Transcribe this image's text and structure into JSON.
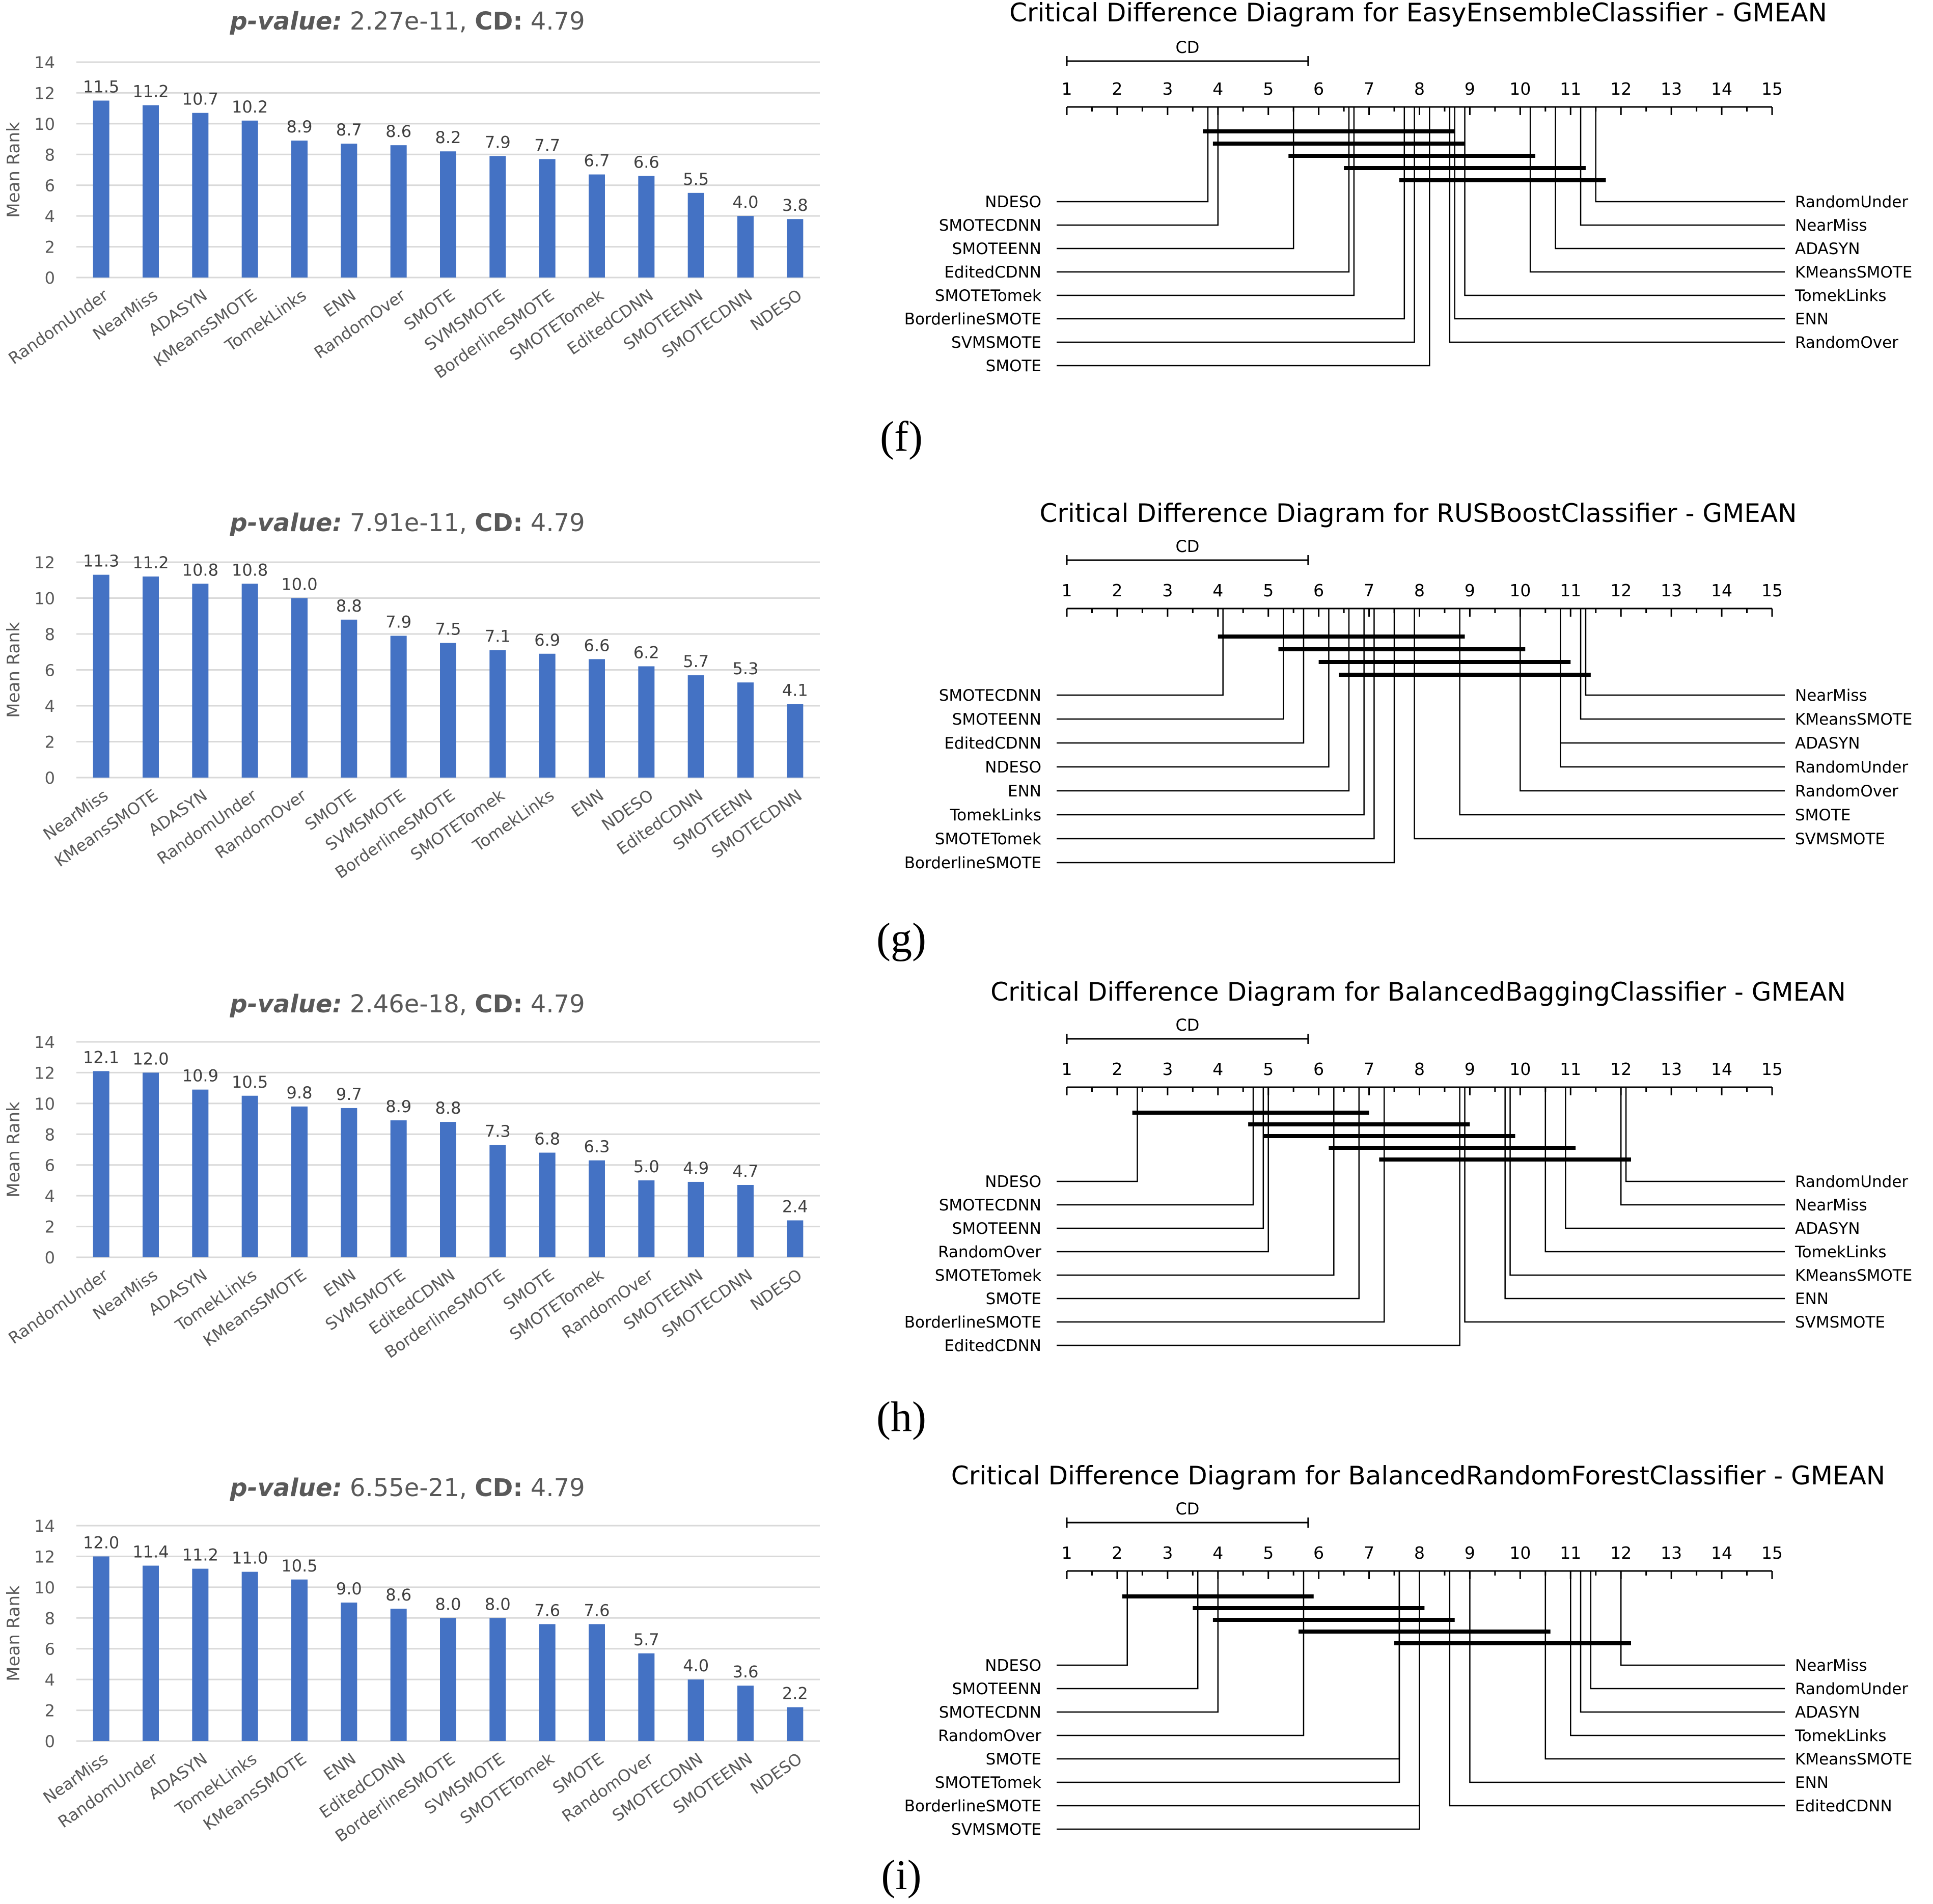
{
  "figure_title": "Mean rank bar charts and critical difference diagrams (GMEAN)",
  "colors": {
    "bar": "#4472C4",
    "grid": "#D9D9D9",
    "axis_text": "#595959",
    "title_text": "#595959",
    "cd_line": "#000000"
  },
  "panel_labels": [
    "(f)",
    "(g)",
    "(h)",
    "(i)"
  ],
  "chart_data": [
    {
      "type": "bar",
      "title_prefix": "p-value:",
      "pvalue": "2.27e-11",
      "cd_label": "CD:",
      "cd": "4.79",
      "ylabel": "Mean Rank",
      "ylim": [
        0,
        14
      ],
      "yticks": [
        0,
        2,
        4,
        6,
        8,
        10,
        12,
        14
      ],
      "grid": true,
      "categories": [
        "RandomUnder",
        "NearMiss",
        "ADASYN",
        "KMeansSMOTE",
        "TomekLinks",
        "ENN",
        "RandomOver",
        "SMOTE",
        "SVMSMOTE",
        "BorderlineSMOTE",
        "SMOTETomek",
        "EditedCDNN",
        "SMOTEENN",
        "SMOTECDNN",
        "NDESO"
      ],
      "values": [
        11.5,
        11.2,
        10.7,
        10.2,
        8.9,
        8.7,
        8.6,
        8.2,
        7.9,
        7.7,
        6.7,
        6.6,
        5.5,
        4.0,
        3.8
      ]
    },
    {
      "type": "bar",
      "title_prefix": "p-value:",
      "pvalue": "7.91e-11",
      "cd_label": "CD:",
      "cd": "4.79",
      "ylabel": "Mean Rank",
      "ylim": [
        0,
        12
      ],
      "yticks": [
        0,
        2,
        4,
        6,
        8,
        10,
        12
      ],
      "grid": true,
      "categories": [
        "NearMiss",
        "KMeansSMOTE",
        "ADASYN",
        "RandomUnder",
        "RandomOver",
        "SMOTE",
        "SVMSMOTE",
        "BorderlineSMOTE",
        "SMOTETomek",
        "TomekLinks",
        "ENN",
        "NDESO",
        "EditedCDNN",
        "SMOTEENN",
        "SMOTECDNN"
      ],
      "values": [
        11.3,
        11.2,
        10.8,
        10.8,
        10.0,
        8.8,
        7.9,
        7.5,
        7.1,
        6.9,
        6.6,
        6.2,
        5.7,
        5.3,
        4.1
      ]
    },
    {
      "type": "bar",
      "title_prefix": "p-value:",
      "pvalue": "2.46e-18",
      "cd_label": "CD:",
      "cd": "4.79",
      "ylabel": "Mean Rank",
      "ylim": [
        0,
        14
      ],
      "yticks": [
        0,
        2,
        4,
        6,
        8,
        10,
        12,
        14
      ],
      "grid": true,
      "categories": [
        "RandomUnder",
        "NearMiss",
        "ADASYN",
        "TomekLinks",
        "KMeansSMOTE",
        "ENN",
        "SVMSMOTE",
        "EditedCDNN",
        "BorderlineSMOTE",
        "SMOTE",
        "SMOTETomek",
        "RandomOver",
        "SMOTEENN",
        "SMOTECDNN",
        "NDESO"
      ],
      "values": [
        12.1,
        12.0,
        10.9,
        10.5,
        9.8,
        9.7,
        8.9,
        8.8,
        7.3,
        6.8,
        6.3,
        5.0,
        4.9,
        4.7,
        2.4
      ]
    },
    {
      "type": "bar",
      "title_prefix": "p-value:",
      "pvalue": "6.55e-21",
      "cd_label": "CD:",
      "cd": "4.79",
      "ylabel": "Mean Rank",
      "ylim": [
        0,
        14
      ],
      "yticks": [
        0,
        2,
        4,
        6,
        8,
        10,
        12,
        14
      ],
      "grid": true,
      "categories": [
        "NearMiss",
        "RandomUnder",
        "ADASYN",
        "TomekLinks",
        "KMeansSMOTE",
        "ENN",
        "EditedCDNN",
        "BorderlineSMOTE",
        "SVMSMOTE",
        "SMOTETomek",
        "SMOTE",
        "RandomOver",
        "SMOTECDNN",
        "SMOTEENN",
        "NDESO"
      ],
      "values": [
        12.0,
        11.4,
        11.2,
        11.0,
        10.5,
        9.0,
        8.6,
        8.0,
        8.0,
        7.6,
        7.6,
        5.7,
        4.0,
        3.6,
        2.2
      ]
    },
    {
      "type": "cd_diagram",
      "title": "Critical Difference Diagram for EasyEnsembleClassifier - GMEAN",
      "cd_label": "CD",
      "cd": 4.79,
      "axis_range": [
        1,
        15
      ],
      "axis_ticks": [
        "1",
        "2",
        "3",
        "4",
        "5",
        "6",
        "7",
        "8",
        "9",
        "10",
        "11",
        "12",
        "13",
        "14",
        "15"
      ],
      "left_methods": [
        {
          "name": "NDESO",
          "rank": 3.8
        },
        {
          "name": "SMOTECDNN",
          "rank": 4.0
        },
        {
          "name": "SMOTEENN",
          "rank": 5.5
        },
        {
          "name": "EditedCDNN",
          "rank": 6.6
        },
        {
          "name": "SMOTETomek",
          "rank": 6.7
        },
        {
          "name": "BorderlineSMOTE",
          "rank": 7.7
        },
        {
          "name": "SVMSMOTE",
          "rank": 7.9
        },
        {
          "name": "SMOTE",
          "rank": 8.2
        }
      ],
      "right_methods": [
        {
          "name": "RandomUnder",
          "rank": 11.5
        },
        {
          "name": "NearMiss",
          "rank": 11.2
        },
        {
          "name": "ADASYN",
          "rank": 10.7
        },
        {
          "name": "KMeansSMOTE",
          "rank": 10.2
        },
        {
          "name": "TomekLinks",
          "rank": 8.9
        },
        {
          "name": "ENN",
          "rank": 8.7
        },
        {
          "name": "RandomOver",
          "rank": 8.6
        }
      ],
      "cliques": [
        [
          3.7,
          8.7
        ],
        [
          3.9,
          8.9
        ],
        [
          5.4,
          10.3
        ],
        [
          6.5,
          11.3
        ],
        [
          7.6,
          11.7
        ]
      ]
    },
    {
      "type": "cd_diagram",
      "title": "Critical Difference Diagram for RUSBoostClassifier - GMEAN",
      "cd_label": "CD",
      "cd": 4.79,
      "axis_range": [
        1,
        15
      ],
      "axis_ticks": [
        "1",
        "2",
        "3",
        "4",
        "5",
        "6",
        "7",
        "8",
        "9",
        "10",
        "11",
        "12",
        "13",
        "14",
        "15"
      ],
      "left_methods": [
        {
          "name": "SMOTECDNN",
          "rank": 4.1
        },
        {
          "name": "SMOTEENN",
          "rank": 5.3
        },
        {
          "name": "EditedCDNN",
          "rank": 5.7
        },
        {
          "name": "NDESO",
          "rank": 6.2
        },
        {
          "name": "ENN",
          "rank": 6.6
        },
        {
          "name": "TomekLinks",
          "rank": 6.9
        },
        {
          "name": "SMOTETomek",
          "rank": 7.1
        },
        {
          "name": "BorderlineSMOTE",
          "rank": 7.5
        }
      ],
      "right_methods": [
        {
          "name": "NearMiss",
          "rank": 11.3
        },
        {
          "name": "KMeansSMOTE",
          "rank": 11.2
        },
        {
          "name": "ADASYN",
          "rank": 10.8
        },
        {
          "name": "RandomUnder",
          "rank": 10.8
        },
        {
          "name": "RandomOver",
          "rank": 10.0
        },
        {
          "name": "SMOTE",
          "rank": 8.8
        },
        {
          "name": "SVMSMOTE",
          "rank": 7.9
        }
      ],
      "cliques": [
        [
          4.0,
          8.9
        ],
        [
          5.2,
          10.1
        ],
        [
          6.0,
          11.0
        ],
        [
          6.4,
          11.4
        ]
      ]
    },
    {
      "type": "cd_diagram",
      "title": "Critical Difference Diagram for BalancedBaggingClassifier - GMEAN",
      "cd_label": "CD",
      "cd": 4.79,
      "axis_range": [
        1,
        15
      ],
      "axis_ticks": [
        "1",
        "2",
        "3",
        "4",
        "5",
        "6",
        "7",
        "8",
        "9",
        "10",
        "11",
        "12",
        "13",
        "14",
        "15"
      ],
      "left_methods": [
        {
          "name": "NDESO",
          "rank": 2.4
        },
        {
          "name": "SMOTECDNN",
          "rank": 4.7
        },
        {
          "name": "SMOTEENN",
          "rank": 4.9
        },
        {
          "name": "RandomOver",
          "rank": 5.0
        },
        {
          "name": "SMOTETomek",
          "rank": 6.3
        },
        {
          "name": "SMOTE",
          "rank": 6.8
        },
        {
          "name": "BorderlineSMOTE",
          "rank": 7.3
        },
        {
          "name": "EditedCDNN",
          "rank": 8.8
        }
      ],
      "right_methods": [
        {
          "name": "RandomUnder",
          "rank": 12.1
        },
        {
          "name": "NearMiss",
          "rank": 12.0
        },
        {
          "name": "ADASYN",
          "rank": 10.9
        },
        {
          "name": "TomekLinks",
          "rank": 10.5
        },
        {
          "name": "KMeansSMOTE",
          "rank": 9.8
        },
        {
          "name": "ENN",
          "rank": 9.7
        },
        {
          "name": "SVMSMOTE",
          "rank": 8.9
        }
      ],
      "cliques": [
        [
          2.3,
          7.0
        ],
        [
          4.6,
          9.0
        ],
        [
          4.9,
          9.9
        ],
        [
          6.2,
          11.1
        ],
        [
          7.2,
          12.2
        ]
      ]
    },
    {
      "type": "cd_diagram",
      "title": "Critical Difference Diagram for BalancedRandomForestClassifier - GMEAN",
      "cd_label": "CD",
      "cd": 4.79,
      "axis_range": [
        1,
        15
      ],
      "axis_ticks": [
        "1",
        "2",
        "3",
        "4",
        "5",
        "6",
        "7",
        "8",
        "9",
        "10",
        "11",
        "12",
        "13",
        "14",
        "15"
      ],
      "left_methods": [
        {
          "name": "NDESO",
          "rank": 2.2
        },
        {
          "name": "SMOTEENN",
          "rank": 3.6
        },
        {
          "name": "SMOTECDNN",
          "rank": 4.0
        },
        {
          "name": "RandomOver",
          "rank": 5.7
        },
        {
          "name": "SMOTE",
          "rank": 7.6
        },
        {
          "name": "SMOTETomek",
          "rank": 7.6
        },
        {
          "name": "BorderlineSMOTE",
          "rank": 8.0
        },
        {
          "name": "SVMSMOTE",
          "rank": 8.0
        }
      ],
      "right_methods": [
        {
          "name": "NearMiss",
          "rank": 12.0
        },
        {
          "name": "RandomUnder",
          "rank": 11.4
        },
        {
          "name": "ADASYN",
          "rank": 11.2
        },
        {
          "name": "TomekLinks",
          "rank": 11.0
        },
        {
          "name": "KMeansSMOTE",
          "rank": 10.5
        },
        {
          "name": "ENN",
          "rank": 9.0
        },
        {
          "name": "EditedCDNN",
          "rank": 8.6
        }
      ],
      "cliques": [
        [
          2.1,
          5.9
        ],
        [
          3.5,
          8.1
        ],
        [
          3.9,
          8.7
        ],
        [
          5.6,
          10.6
        ],
        [
          7.5,
          12.2
        ]
      ]
    }
  ]
}
